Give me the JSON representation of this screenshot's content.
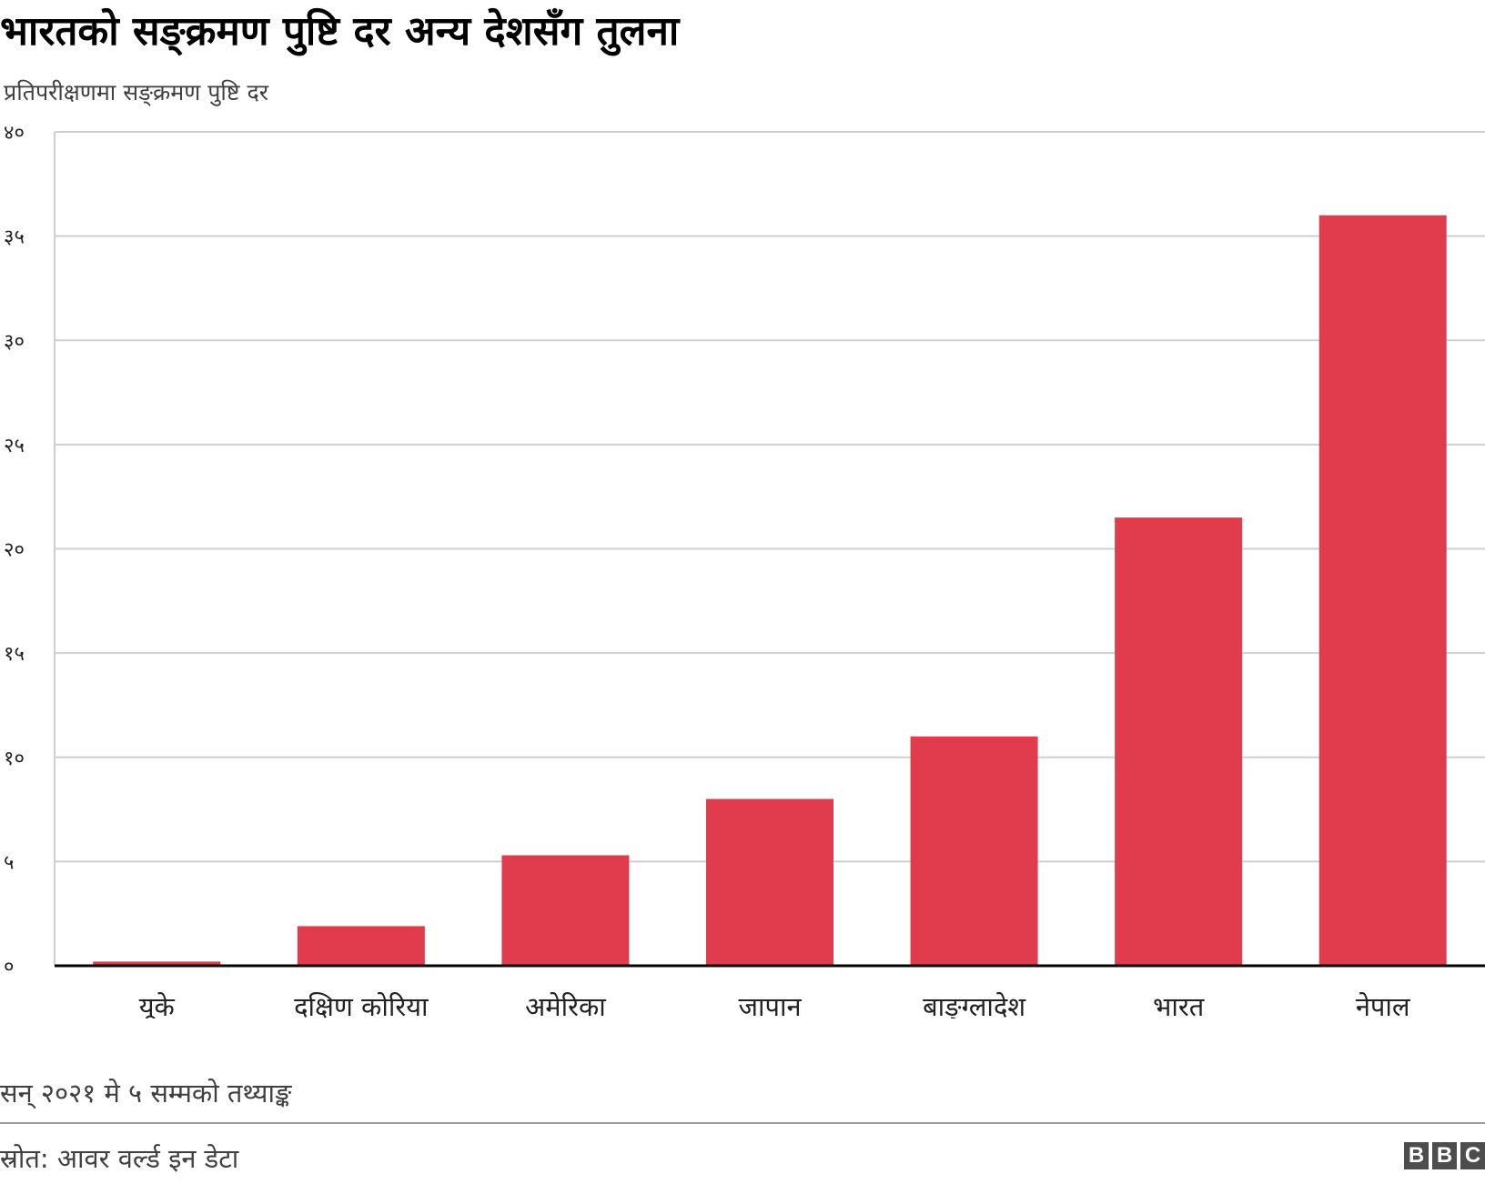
{
  "title": "भारतको सङ्क्रमण पुष्टि दर अन्य देशसँग तुलना",
  "subtitle": "प्रतिपरीक्षणमा सङ्क्रमण पुष्टि दर",
  "note": "सन् २०२१ मे ५ सम्मको तथ्याङ्क",
  "source": "स्रोत: आवर वर्ल्ड इन डेटा",
  "logo": [
    "B",
    "B",
    "C"
  ],
  "colors": {
    "bar": "#e03c4d",
    "grid": "#cfcfcf",
    "axis": "#000000"
  },
  "chart_data": {
    "type": "bar",
    "title": "भारतको सङ्क्रमण पुष्टि दर अन्य देशसँग तुलना",
    "ylabel": "प्रतिपरीक्षणमा सङ्क्रमण पुष्टि दर",
    "categories": [
      "यूके",
      "दक्षिण कोरिया",
      "अमेरिका",
      "जापान",
      "बाङ्ग्लादेश",
      "भारत",
      "नेपाल"
    ],
    "values": [
      0.2,
      1.9,
      5.3,
      8.0,
      11.0,
      21.5,
      36.0
    ],
    "ylim": [
      0,
      40
    ],
    "yticks": [
      0,
      5,
      10,
      15,
      20,
      25,
      30,
      35,
      40
    ],
    "ytick_labels": [
      "०",
      "५",
      "१०",
      "१५",
      "२०",
      "२५",
      "३०",
      "३५",
      "४०"
    ],
    "grid": true
  }
}
